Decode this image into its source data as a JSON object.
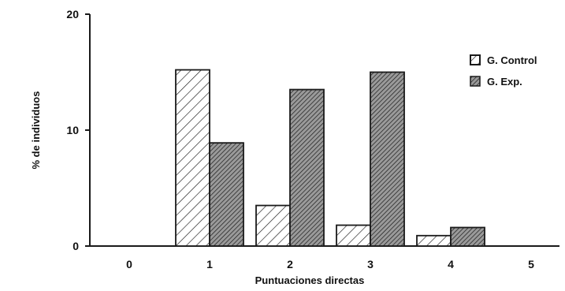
{
  "chart_data": {
    "type": "bar",
    "title": "",
    "xlabel": "Puntuaciones directas",
    "ylabel": "% de individuos",
    "categories": [
      "0",
      "1",
      "2",
      "3",
      "4",
      "5"
    ],
    "ylim": [
      0,
      20
    ],
    "yticks": [
      "0",
      "10",
      "20"
    ],
    "grid": false,
    "legend_position": "top-right",
    "series": [
      {
        "name": "G. Control",
        "values": [
          0,
          15.2,
          3.5,
          1.8,
          0.9,
          0
        ],
        "pattern": "sparse-diagonal-hatch"
      },
      {
        "name": "G. Exp.",
        "values": [
          0,
          8.9,
          13.5,
          15.0,
          1.6,
          0
        ],
        "pattern": "dense-diagonal-hatch"
      }
    ]
  },
  "colors": {
    "ink": "#1a1a1a",
    "control_fill": "#ffffff",
    "exp_fill": "#9a9a9a"
  }
}
